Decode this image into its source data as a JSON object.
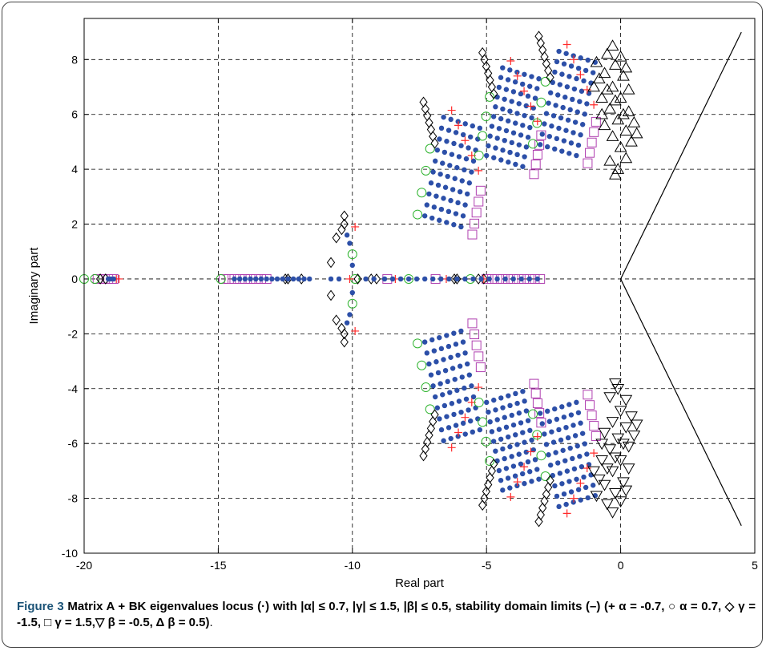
{
  "caption": {
    "label": "Figure 3",
    "text": "Matrix A + BK eigenvalues locus (·) with |α| ≤ 0.7, |γ| ≤ 1.5, |β| ≤ 0.5, stability domain limits (–) (+ α = -0.7, ○ α = 0.7, ◇ γ = -1.5, □ γ = 1.5,▽ β = -0.5, Δ β = 0.5)",
    "tail": "."
  },
  "chart_data": {
    "type": "scatter",
    "xlabel": "Real part",
    "ylabel": "Imaginary part",
    "xlim": [
      -20,
      5
    ],
    "ylim": [
      -10,
      9.5
    ],
    "xticks": [
      -20,
      -15,
      -10,
      -5,
      0,
      5
    ],
    "yticks": [
      -10,
      -8,
      -6,
      -4,
      -2,
      0,
      2,
      4,
      6,
      8
    ],
    "grid": true,
    "colors": {
      "eigen": "#2c4fa8",
      "alpha_neg": "#ff2a2a",
      "alpha_pos": "#2db32d",
      "gamma_neg": "#000000",
      "gamma_pos": "#b040b0",
      "beta": "#000000",
      "limit": "#000000"
    },
    "stability_limit": {
      "x": [
        4.5,
        0,
        4.5
      ],
      "y": [
        9,
        0,
        -9
      ]
    },
    "real_axis_points": {
      "eigen": [
        -19.1,
        -19,
        -18.9,
        -14.4,
        -14.2,
        -14,
        -13.8,
        -13.6,
        -13.4,
        -13.2,
        -13,
        -12.8,
        -12.6,
        -12.4,
        -12.2,
        -12,
        -11.8,
        -11.6,
        -10.8,
        -10.5,
        -9.5,
        -9.2,
        -8.8,
        -8.5,
        -8.2,
        -7.9,
        -7.6,
        -7.3,
        -7,
        -6.7,
        -6.4,
        -6.1,
        -5.8,
        -5.5,
        -5.2,
        -4.9,
        -4.6,
        -4.3,
        -4,
        -3.7,
        -3.4,
        -3.1
      ],
      "alpha_neg": [
        -18.8,
        -18.7,
        -10.1,
        -8.4,
        -6.5,
        -5.1
      ],
      "alpha_pos": [
        -20,
        -19.6,
        -14.9,
        -9.9,
        -7.9,
        -5.6
      ],
      "gamma_neg": [
        -19.4,
        -19.2,
        -12.4,
        -11.9,
        -9.8,
        -9.1,
        -6.2,
        -6.1,
        -5.3,
        -5.1
      ],
      "gamma_pos": [
        -19.5,
        -19.3,
        -19.1,
        -18.9,
        -14.8,
        -14.6,
        -14.4,
        -14.2,
        -14,
        -13.8,
        -13.6,
        -13.4,
        -13.2,
        -8.7,
        -6.9,
        -5,
        -4.8,
        -4.6,
        -4.4,
        -4.2,
        -4,
        -3.8,
        -3.6,
        -3.4,
        -3.2,
        -3
      ],
      "beta": [
        -12.5,
        -9.3
      ]
    },
    "clusters": [
      {
        "name": "c1",
        "xt": -6.6,
        "yt": 5.9,
        "xb": -7.3,
        "yb": 2.3,
        "dx": 0.27,
        "dy": 0.08,
        "n": 10,
        "m": 6
      },
      {
        "name": "c2",
        "xt": -4.4,
        "yt": 7.7,
        "xb": -5.0,
        "yb": 4.5,
        "dx": 0.27,
        "dy": 0.08,
        "n": 10,
        "m": 6
      },
      {
        "name": "c3",
        "xt": -2.3,
        "yt": 8.3,
        "xb": -3.0,
        "yb": 4.9,
        "dx": 0.27,
        "dy": 0.08,
        "n": 10,
        "m": 6
      }
    ],
    "near_real_pair": {
      "diamond": [
        [
          -10.3,
          2.3
        ],
        [
          -10.3,
          2.0
        ],
        [
          -10.4,
          1.8
        ],
        [
          -10.6,
          1.5
        ],
        [
          -10.8,
          0.6
        ]
      ],
      "plus": [
        [
          -9.9,
          1.9
        ]
      ],
      "circle": [
        [
          -10.0,
          0.9
        ]
      ],
      "eigen": [
        [
          -10.1,
          1.3
        ],
        [
          -10.2,
          1.6
        ],
        [
          -10.0,
          0.5
        ]
      ]
    },
    "beta_triangles": {
      "centers": [
        [
          -0.9,
          7.9
        ],
        [
          -0.6,
          7.5
        ],
        [
          -0.3,
          7.0
        ],
        [
          0.0,
          6.6
        ],
        [
          0.3,
          6.1
        ],
        [
          0.5,
          5.7
        ],
        [
          -0.5,
          8.2
        ],
        [
          -0.2,
          7.8
        ],
        [
          0.1,
          7.4
        ],
        [
          0.3,
          6.9
        ],
        [
          -1.0,
          7.0
        ],
        [
          -0.7,
          6.6
        ],
        [
          -0.4,
          6.2
        ],
        [
          -0.1,
          5.8
        ],
        [
          0.2,
          5.4
        ],
        [
          0.4,
          5.0
        ],
        [
          -0.6,
          5.6
        ],
        [
          -0.3,
          5.2
        ],
        [
          0.0,
          4.8
        ],
        [
          0.2,
          4.4
        ],
        [
          -0.1,
          4.0
        ],
        [
          -0.2,
          3.8
        ],
        [
          -0.8,
          7.3
        ],
        [
          -0.5,
          6.9
        ],
        [
          -0.2,
          6.5
        ],
        [
          0.1,
          6.0
        ],
        [
          -0.3,
          8.5
        ],
        [
          0.0,
          8.1
        ],
        [
          0.2,
          7.7
        ],
        [
          -0.4,
          4.3
        ],
        [
          -0.7,
          6.0
        ],
        [
          0.6,
          5.3
        ]
      ]
    }
  }
}
